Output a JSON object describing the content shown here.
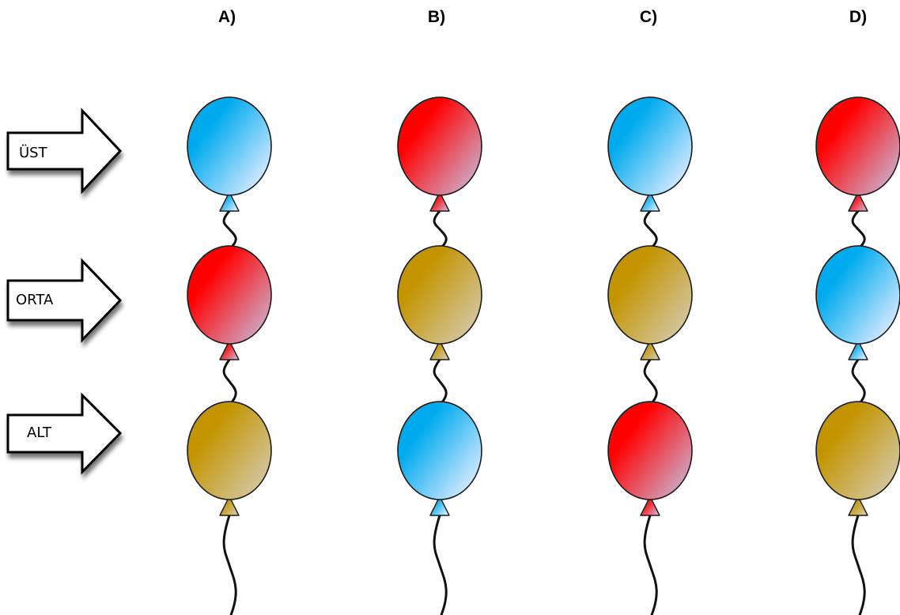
{
  "options": [
    "A)",
    "B)",
    "C)",
    "D)"
  ],
  "rows": [
    "ÜST",
    "ORTA",
    "ALT"
  ],
  "colors": {
    "blue": [
      "#00aaee",
      "#e8eeff"
    ],
    "red": [
      "#ff0000",
      "#c8b4d2"
    ],
    "gold": [
      "#c39400",
      "#d4cab0"
    ]
  },
  "columns": [
    [
      "blue",
      "red",
      "gold"
    ],
    [
      "red",
      "gold",
      "blue"
    ],
    [
      "blue",
      "gold",
      "red"
    ],
    [
      "red",
      "blue",
      "gold"
    ]
  ]
}
